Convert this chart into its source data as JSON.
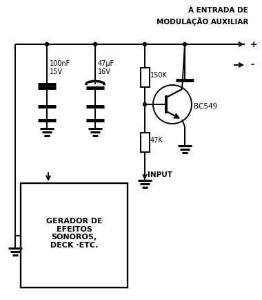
{
  "bg_color": "#ffffff",
  "label_100nF": "100nF\n15V",
  "label_47uF": "47μF\n16V",
  "label_150K": "150K",
  "label_47K": "47K",
  "label_BC549": "BC549",
  "label_input": "INPUT",
  "label_box": "GERADOR DE\nEFEITOS\nSONOROS,\nDECK ·ETC.",
  "label_top_line1": "À ENTRADA DE",
  "label_top_line2": "MODULAÇÃO AUXILIAR",
  "label_plus": "+",
  "label_minus": "-"
}
